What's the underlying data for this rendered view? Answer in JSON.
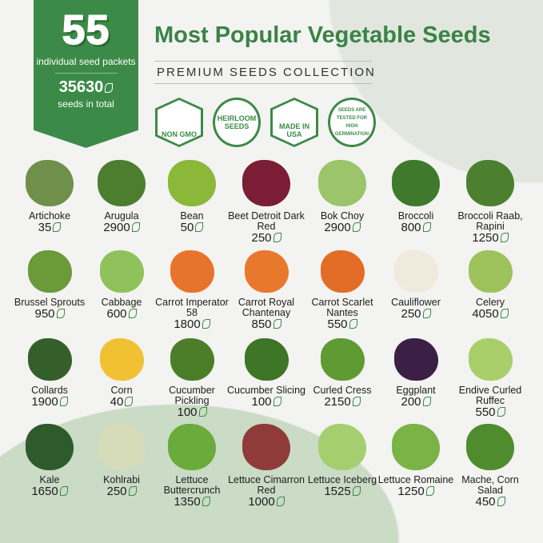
{
  "banner": {
    "count": "55",
    "packets_label": "individual seed packets",
    "total": "35630",
    "total_label": "seeds in total"
  },
  "title": "Most Popular Vegetable Seeds",
  "subtitle": "PREMIUM SEEDS COLLECTION",
  "badges": [
    "NON GMO",
    "HEIRLOOM SEEDS",
    "MADE IN USA",
    "SEEDS ARE TESTED FOR HIGH GERMINATION"
  ],
  "accent": "#3c8a47",
  "items": [
    {
      "name": "Artichoke",
      "count": "35",
      "color": "#6f8f4a"
    },
    {
      "name": "Arugula",
      "count": "2900",
      "color": "#4d7d2e"
    },
    {
      "name": "Bean",
      "count": "50",
      "color": "#8cb83a"
    },
    {
      "name": "Beet Detroit Dark Red",
      "count": "250",
      "color": "#7a1d35"
    },
    {
      "name": "Bok Choy",
      "count": "2900",
      "color": "#9cc46a"
    },
    {
      "name": "Broccoli",
      "count": "800",
      "color": "#3f7a2c"
    },
    {
      "name": "Broccoli Raab, Rapini",
      "count": "1250",
      "color": "#4c7f30"
    },
    {
      "name": "Brussel Sprouts",
      "count": "950",
      "color": "#6a9a3a"
    },
    {
      "name": "Cabbage",
      "count": "600",
      "color": "#8fc25a"
    },
    {
      "name": "Carrot Imperator 58",
      "count": "1800",
      "color": "#e7742a"
    },
    {
      "name": "Carrot Royal Chantenay",
      "count": "850",
      "color": "#e8792c"
    },
    {
      "name": "Carrot Scarlet Nantes",
      "count": "550",
      "color": "#e36d26"
    },
    {
      "name": "Cauliflower",
      "count": "250",
      "color": "#efeadb"
    },
    {
      "name": "Celery",
      "count": "4050",
      "color": "#9ec25c"
    },
    {
      "name": "Collards",
      "count": "1900",
      "color": "#355f2a"
    },
    {
      "name": "Corn",
      "count": "40",
      "color": "#f0c233"
    },
    {
      "name": "Cucumber Pickling",
      "count": "100",
      "color": "#4c7e2a"
    },
    {
      "name": "Cucumber Slicing",
      "count": "100",
      "color": "#3f7526"
    },
    {
      "name": "Curled Cress",
      "count": "2150",
      "color": "#5f9a32"
    },
    {
      "name": "Eggplant",
      "count": "200",
      "color": "#3b1f45"
    },
    {
      "name": "Endive Curled Ruffec",
      "count": "550",
      "color": "#a9cf6a"
    },
    {
      "name": "Kale",
      "count": "1650",
      "color": "#2f5a2c"
    },
    {
      "name": "Kohlrabi",
      "count": "250",
      "color": "#d6dbb8"
    },
    {
      "name": "Lettuce Buttercrunch",
      "count": "1350",
      "color": "#6aab3a"
    },
    {
      "name": "Lettuce Cimarron Red",
      "count": "1000",
      "color": "#8f3b3a"
    },
    {
      "name": "Lettuce Iceberg",
      "count": "1525",
      "color": "#a5cf6f"
    },
    {
      "name": "Lettuce Romaine",
      "count": "1250",
      "color": "#7ab446"
    },
    {
      "name": "Mache, Corn Salad",
      "count": "450",
      "color": "#4f8c2e"
    }
  ]
}
